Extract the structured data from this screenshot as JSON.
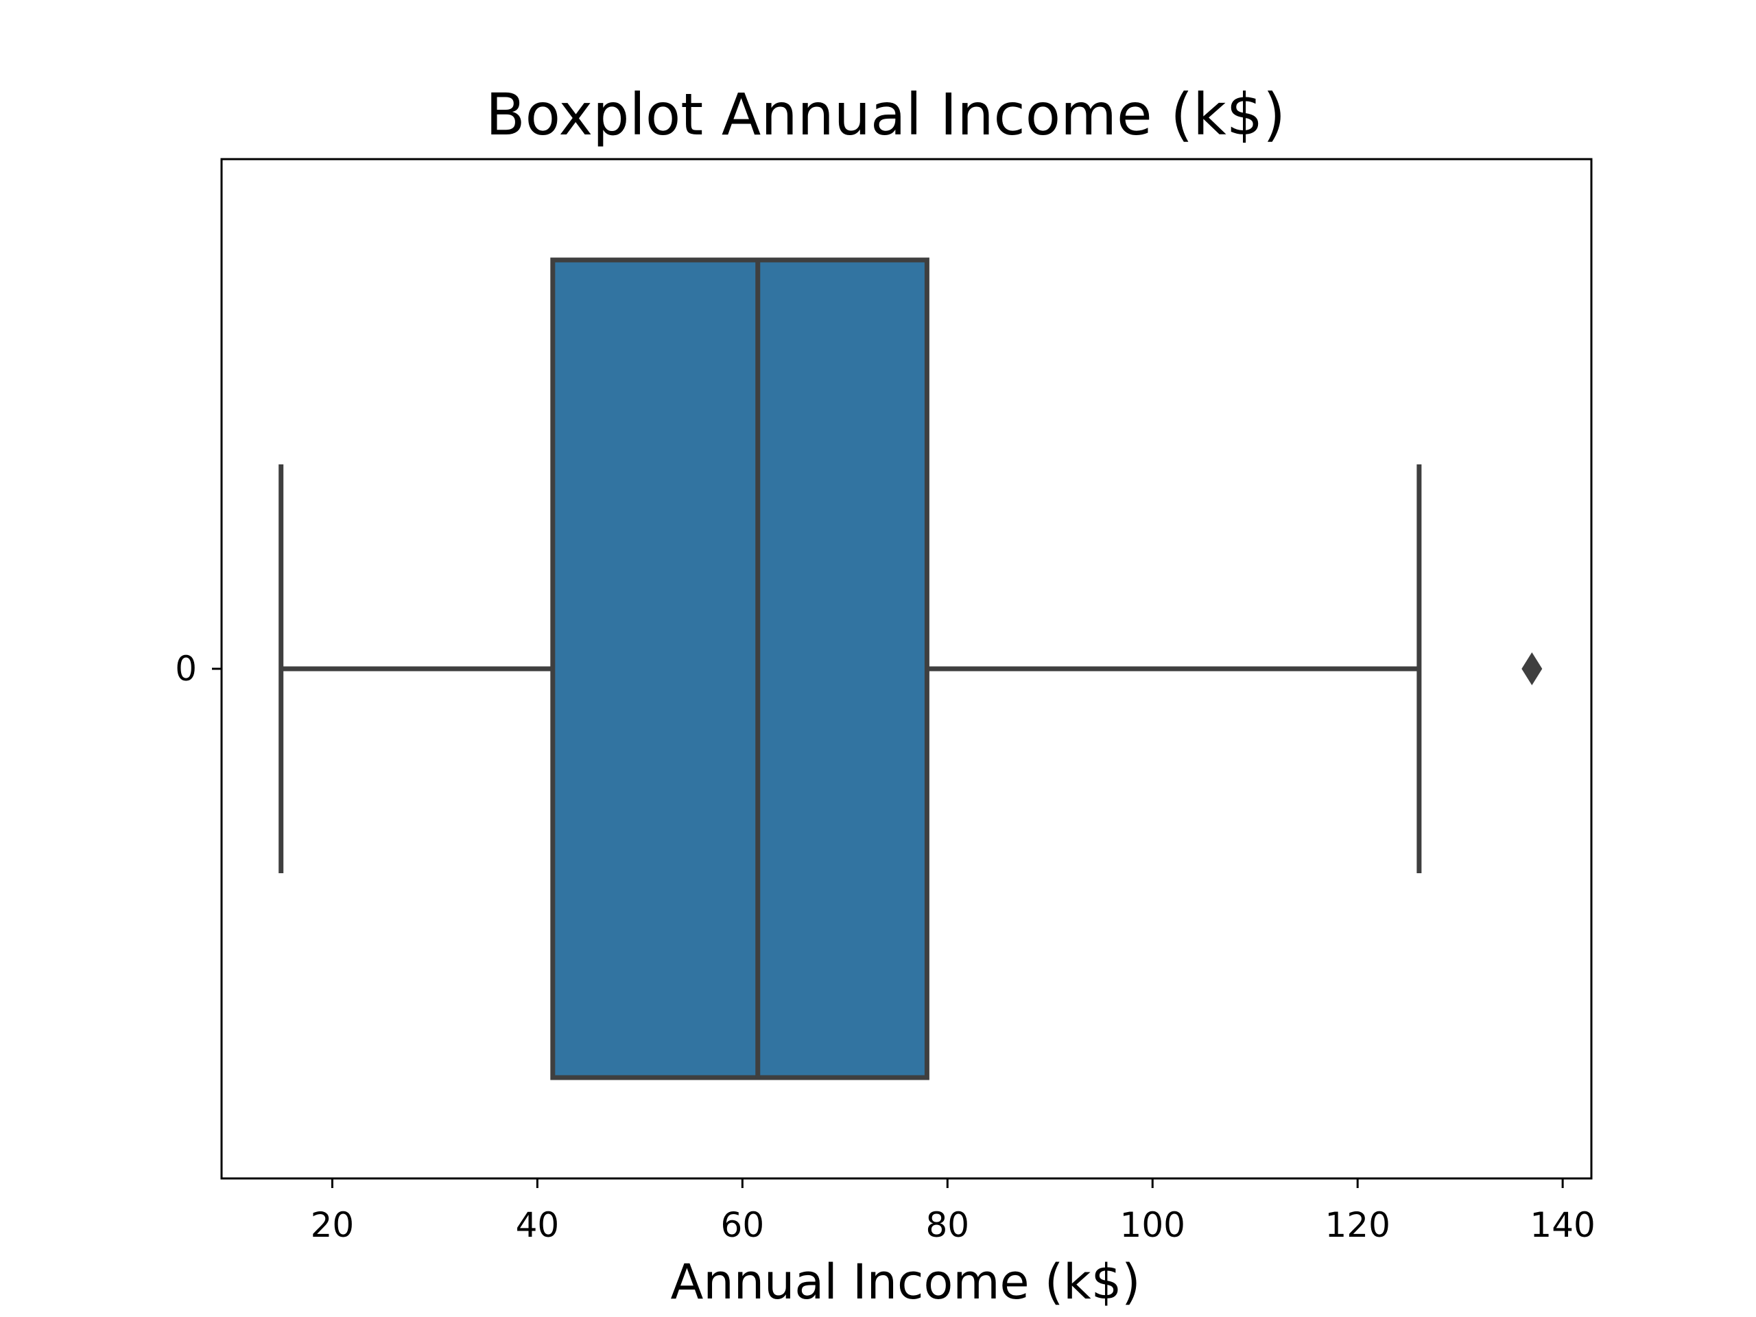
{
  "chart_data": {
    "type": "box",
    "title": "Boxplot Annual Income (k$)",
    "xlabel": "Annual Income (k$)",
    "ylabel": "",
    "orientation": "horizontal",
    "xlim": [
      9.2,
      142.8
    ],
    "x_ticks": [
      20,
      40,
      60,
      80,
      100,
      120,
      140
    ],
    "y_categories": [
      "0"
    ],
    "grid": false,
    "box": {
      "category": "0",
      "whisker_low": 15,
      "q1": 41.5,
      "median": 61.5,
      "q3": 78,
      "whisker_high": 126,
      "outliers": [
        137
      ]
    },
    "colors": {
      "box_fill": "#3274a1",
      "line": "#3f3f3f",
      "axes": "#000000"
    }
  }
}
